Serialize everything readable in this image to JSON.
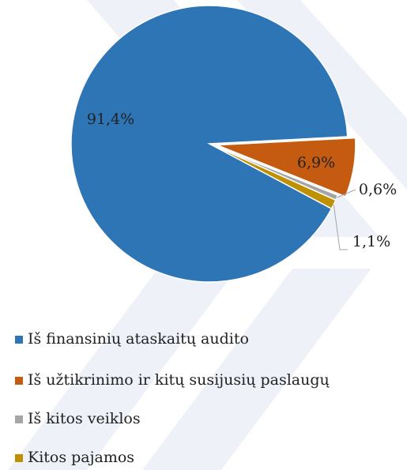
{
  "chart_data": {
    "type": "pie",
    "categories": [
      "Iš finansinių ataskaitų audito",
      "Iš užtikrinimo ir kitų susijusių paslaugų",
      "Iš kitos veiklos",
      "Kitos pajamos"
    ],
    "values": [
      91.4,
      6.9,
      0.6,
      1.1
    ],
    "value_labels": [
      "91,4%",
      "6,9%",
      "0,6%",
      "1,1%"
    ],
    "colors": [
      "#2e75b6",
      "#c55a11",
      "#a5a5a5",
      "#bf9000"
    ]
  }
}
